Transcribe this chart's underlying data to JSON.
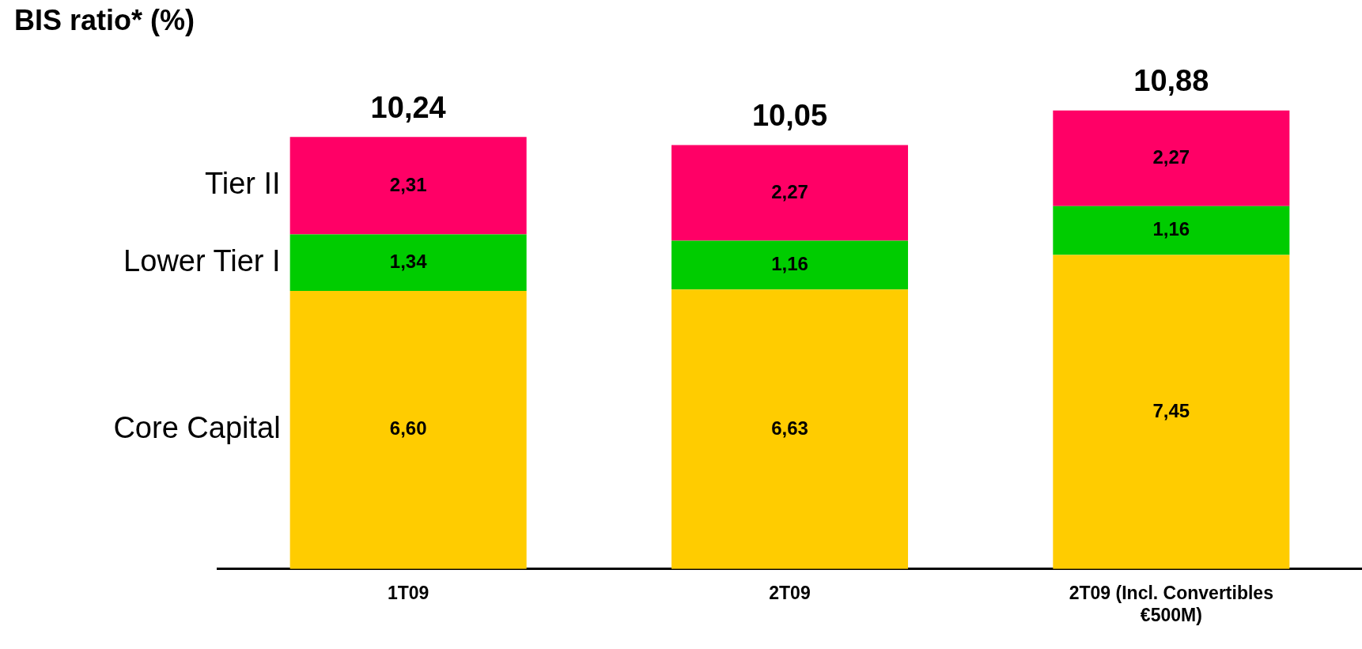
{
  "chart_data": {
    "type": "bar",
    "title": "BIS ratio* (%)",
    "stacked": true,
    "legend": "left",
    "grid": false,
    "categories": [
      "1T09",
      "2T09",
      "2T09 (Incl. Convertibles €500M)"
    ],
    "series": [
      {
        "name": "Core Capital",
        "color": "#ffcc00",
        "values": [
          6.6,
          6.63,
          7.45
        ],
        "value_labels": [
          "6,60",
          "6,63",
          "7,45"
        ]
      },
      {
        "name": "Lower Tier I",
        "color": "#00cc00",
        "values": [
          1.34,
          1.16,
          1.16
        ],
        "value_labels": [
          "1,34",
          "1,16",
          "1,16"
        ]
      },
      {
        "name": "Tier II",
        "color": "#ff0066",
        "values": [
          2.31,
          2.27,
          2.27
        ],
        "value_labels": [
          "2,31",
          "2,27",
          "2,27"
        ]
      }
    ],
    "totals": [
      "10,24",
      "10,05",
      "10,88"
    ]
  }
}
